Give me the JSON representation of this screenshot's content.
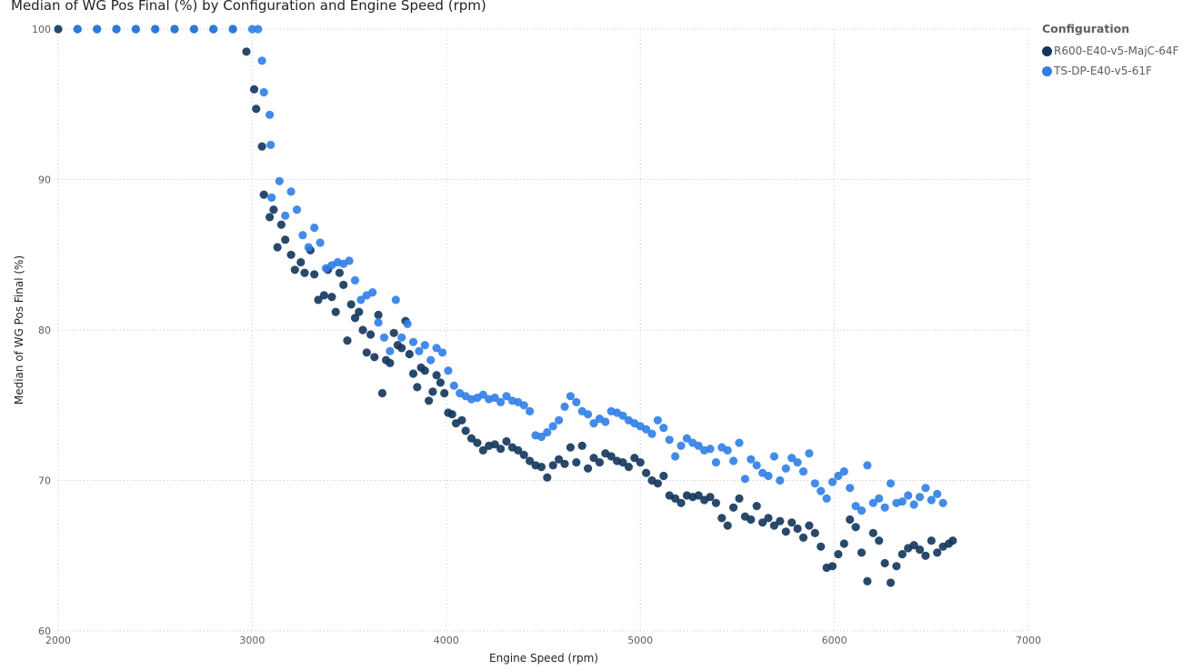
{
  "chart_data": {
    "type": "scatter",
    "title": "Median of WG Pos Final (%) by Configuration and Engine Speed (rpm)",
    "xlabel": "Engine Speed (rpm)",
    "ylabel": "Median of WG Pos Final (%)",
    "xlim": [
      2000,
      7000
    ],
    "ylim": [
      60,
      100
    ],
    "xticks": [
      2000,
      3000,
      4000,
      5000,
      6000,
      7000
    ],
    "yticks": [
      60,
      70,
      80,
      90,
      100
    ],
    "grid": true,
    "legend": {
      "title": "Configuration",
      "position": "top-right"
    },
    "series": [
      {
        "name": "R600-E40-v5-MajC-64F",
        "color": "#12355b",
        "points": [
          [
            2000,
            100
          ],
          [
            2100,
            100
          ],
          [
            2200,
            100
          ],
          [
            2300,
            100
          ],
          [
            2400,
            100
          ],
          [
            2500,
            100
          ],
          [
            2600,
            100
          ],
          [
            2700,
            100
          ],
          [
            2800,
            100
          ],
          [
            2900,
            100
          ],
          [
            2970,
            98.5
          ],
          [
            3010,
            96
          ],
          [
            3020,
            94.7
          ],
          [
            3050,
            92.2
          ],
          [
            3060,
            89
          ],
          [
            3090,
            87.5
          ],
          [
            3110,
            88
          ],
          [
            3130,
            85.5
          ],
          [
            3150,
            87
          ],
          [
            3170,
            86
          ],
          [
            3200,
            85
          ],
          [
            3220,
            84
          ],
          [
            3250,
            84.5
          ],
          [
            3270,
            83.8
          ],
          [
            3300,
            85.3
          ],
          [
            3320,
            83.7
          ],
          [
            3340,
            82
          ],
          [
            3370,
            82.3
          ],
          [
            3390,
            84
          ],
          [
            3410,
            82.2
          ],
          [
            3430,
            81.2
          ],
          [
            3450,
            83.8
          ],
          [
            3470,
            83
          ],
          [
            3490,
            79.3
          ],
          [
            3510,
            81.7
          ],
          [
            3530,
            80.8
          ],
          [
            3550,
            81.2
          ],
          [
            3570,
            80
          ],
          [
            3590,
            78.5
          ],
          [
            3610,
            79.7
          ],
          [
            3630,
            78.2
          ],
          [
            3650,
            81
          ],
          [
            3670,
            75.8
          ],
          [
            3690,
            78
          ],
          [
            3710,
            77.8
          ],
          [
            3730,
            79.8
          ],
          [
            3750,
            79
          ],
          [
            3770,
            78.8
          ],
          [
            3790,
            80.6
          ],
          [
            3810,
            78.4
          ],
          [
            3830,
            77.1
          ],
          [
            3850,
            76.2
          ],
          [
            3870,
            77.5
          ],
          [
            3890,
            77.3
          ],
          [
            3910,
            75.3
          ],
          [
            3930,
            75.9
          ],
          [
            3950,
            77
          ],
          [
            3970,
            76.5
          ],
          [
            3990,
            75.8
          ],
          [
            4010,
            74.5
          ],
          [
            4030,
            74.4
          ],
          [
            4050,
            73.8
          ],
          [
            4080,
            74
          ],
          [
            4100,
            73.3
          ],
          [
            4130,
            72.8
          ],
          [
            4160,
            72.5
          ],
          [
            4190,
            72
          ],
          [
            4220,
            72.3
          ],
          [
            4250,
            72.4
          ],
          [
            4280,
            72.1
          ],
          [
            4310,
            72.6
          ],
          [
            4340,
            72.2
          ],
          [
            4370,
            72
          ],
          [
            4400,
            71.7
          ],
          [
            4430,
            71.3
          ],
          [
            4460,
            71
          ],
          [
            4490,
            70.9
          ],
          [
            4520,
            70.2
          ],
          [
            4550,
            71
          ],
          [
            4580,
            71.4
          ],
          [
            4610,
            71.1
          ],
          [
            4640,
            72.2
          ],
          [
            4670,
            71.2
          ],
          [
            4700,
            72.3
          ],
          [
            4730,
            70.8
          ],
          [
            4760,
            71.5
          ],
          [
            4790,
            71.2
          ],
          [
            4820,
            71.8
          ],
          [
            4850,
            71.6
          ],
          [
            4880,
            71.3
          ],
          [
            4910,
            71.2
          ],
          [
            4940,
            70.9
          ],
          [
            4970,
            71.5
          ],
          [
            5000,
            71.2
          ],
          [
            5030,
            70.5
          ],
          [
            5060,
            70
          ],
          [
            5090,
            69.8
          ],
          [
            5120,
            70.3
          ],
          [
            5150,
            69
          ],
          [
            5180,
            68.8
          ],
          [
            5210,
            68.5
          ],
          [
            5240,
            69
          ],
          [
            5270,
            68.9
          ],
          [
            5300,
            69
          ],
          [
            5330,
            68.7
          ],
          [
            5360,
            68.9
          ],
          [
            5390,
            68.5
          ],
          [
            5420,
            67.5
          ],
          [
            5450,
            67
          ],
          [
            5480,
            68.2
          ],
          [
            5510,
            68.8
          ],
          [
            5540,
            67.6
          ],
          [
            5570,
            67.4
          ],
          [
            5600,
            68.3
          ],
          [
            5630,
            67.2
          ],
          [
            5660,
            67.5
          ],
          [
            5690,
            67
          ],
          [
            5720,
            67.3
          ],
          [
            5750,
            66.6
          ],
          [
            5780,
            67.2
          ],
          [
            5810,
            66.8
          ],
          [
            5840,
            66.2
          ],
          [
            5870,
            67
          ],
          [
            5900,
            66.5
          ],
          [
            5930,
            65.6
          ],
          [
            5960,
            64.2
          ],
          [
            5990,
            64.3
          ],
          [
            6020,
            65.1
          ],
          [
            6050,
            65.8
          ],
          [
            6080,
            67.4
          ],
          [
            6110,
            66.9
          ],
          [
            6140,
            65.2
          ],
          [
            6170,
            63.3
          ],
          [
            6200,
            66.5
          ],
          [
            6230,
            66
          ],
          [
            6260,
            64.5
          ],
          [
            6290,
            63.2
          ],
          [
            6320,
            64.3
          ],
          [
            6350,
            65.1
          ],
          [
            6380,
            65.5
          ],
          [
            6410,
            65.7
          ],
          [
            6440,
            65.4
          ],
          [
            6470,
            65
          ],
          [
            6500,
            66
          ],
          [
            6530,
            65.2
          ],
          [
            6560,
            65.6
          ],
          [
            6590,
            65.8
          ],
          [
            6610,
            66
          ]
        ]
      },
      {
        "name": "TS-DP-E40-v5-61F",
        "color": "#2f7ee6",
        "points": [
          [
            2100,
            100
          ],
          [
            2200,
            100
          ],
          [
            2300,
            100
          ],
          [
            2400,
            100
          ],
          [
            2500,
            100
          ],
          [
            2600,
            100
          ],
          [
            2700,
            100
          ],
          [
            2800,
            100
          ],
          [
            2900,
            100
          ],
          [
            3000,
            100
          ],
          [
            3030,
            100
          ],
          [
            3050,
            97.9
          ],
          [
            3060,
            95.8
          ],
          [
            3090,
            94.3
          ],
          [
            3095,
            92.3
          ],
          [
            3100,
            88.8
          ],
          [
            3140,
            89.9
          ],
          [
            3170,
            87.6
          ],
          [
            3200,
            89.2
          ],
          [
            3230,
            88
          ],
          [
            3260,
            86.3
          ],
          [
            3290,
            85.5
          ],
          [
            3320,
            86.8
          ],
          [
            3350,
            85.8
          ],
          [
            3380,
            84.1
          ],
          [
            3410,
            84.3
          ],
          [
            3440,
            84.5
          ],
          [
            3470,
            84.4
          ],
          [
            3500,
            84.6
          ],
          [
            3530,
            83.3
          ],
          [
            3560,
            82
          ],
          [
            3590,
            82.3
          ],
          [
            3620,
            82.5
          ],
          [
            3650,
            80.5
          ],
          [
            3680,
            79.5
          ],
          [
            3710,
            78.6
          ],
          [
            3740,
            82
          ],
          [
            3770,
            79.5
          ],
          [
            3800,
            80.4
          ],
          [
            3830,
            79.2
          ],
          [
            3860,
            78.6
          ],
          [
            3890,
            79
          ],
          [
            3920,
            78
          ],
          [
            3950,
            78.8
          ],
          [
            3980,
            78.5
          ],
          [
            4010,
            77.3
          ],
          [
            4040,
            76.3
          ],
          [
            4070,
            75.8
          ],
          [
            4100,
            75.6
          ],
          [
            4130,
            75.4
          ],
          [
            4160,
            75.5
          ],
          [
            4190,
            75.7
          ],
          [
            4220,
            75.4
          ],
          [
            4250,
            75.5
          ],
          [
            4280,
            75.2
          ],
          [
            4310,
            75.6
          ],
          [
            4340,
            75.3
          ],
          [
            4370,
            75.2
          ],
          [
            4400,
            75
          ],
          [
            4430,
            74.6
          ],
          [
            4460,
            73
          ],
          [
            4490,
            72.9
          ],
          [
            4520,
            73.2
          ],
          [
            4550,
            73.6
          ],
          [
            4580,
            74
          ],
          [
            4610,
            74.9
          ],
          [
            4640,
            75.6
          ],
          [
            4670,
            75.2
          ],
          [
            4700,
            74.6
          ],
          [
            4730,
            74.4
          ],
          [
            4760,
            73.8
          ],
          [
            4790,
            74.1
          ],
          [
            4820,
            73.9
          ],
          [
            4850,
            74.6
          ],
          [
            4880,
            74.5
          ],
          [
            4910,
            74.3
          ],
          [
            4940,
            74
          ],
          [
            4970,
            73.8
          ],
          [
            5000,
            73.6
          ],
          [
            5030,
            73.4
          ],
          [
            5060,
            73.1
          ],
          [
            5090,
            74
          ],
          [
            5120,
            73.5
          ],
          [
            5150,
            72.7
          ],
          [
            5180,
            71.6
          ],
          [
            5210,
            72.3
          ],
          [
            5240,
            72.8
          ],
          [
            5270,
            72.5
          ],
          [
            5300,
            72.3
          ],
          [
            5330,
            72
          ],
          [
            5360,
            72.1
          ],
          [
            5390,
            71.2
          ],
          [
            5420,
            72.2
          ],
          [
            5450,
            72
          ],
          [
            5480,
            71.3
          ],
          [
            5510,
            72.5
          ],
          [
            5540,
            70.1
          ],
          [
            5570,
            71.4
          ],
          [
            5600,
            71
          ],
          [
            5630,
            70.5
          ],
          [
            5660,
            70.3
          ],
          [
            5690,
            71.6
          ],
          [
            5720,
            70
          ],
          [
            5750,
            70.8
          ],
          [
            5780,
            71.5
          ],
          [
            5810,
            71.2
          ],
          [
            5840,
            70.6
          ],
          [
            5870,
            71.8
          ],
          [
            5900,
            69.8
          ],
          [
            5930,
            69.3
          ],
          [
            5960,
            68.8
          ],
          [
            5990,
            69.9
          ],
          [
            6020,
            70.3
          ],
          [
            6050,
            70.6
          ],
          [
            6080,
            69.5
          ],
          [
            6110,
            68.3
          ],
          [
            6140,
            68
          ],
          [
            6170,
            71
          ],
          [
            6200,
            68.5
          ],
          [
            6230,
            68.8
          ],
          [
            6260,
            68.2
          ],
          [
            6290,
            69.8
          ],
          [
            6320,
            68.5
          ],
          [
            6350,
            68.6
          ],
          [
            6380,
            69
          ],
          [
            6410,
            68.4
          ],
          [
            6440,
            68.9
          ],
          [
            6470,
            69.5
          ],
          [
            6500,
            68.7
          ],
          [
            6530,
            69.1
          ],
          [
            6560,
            68.5
          ]
        ]
      }
    ]
  }
}
